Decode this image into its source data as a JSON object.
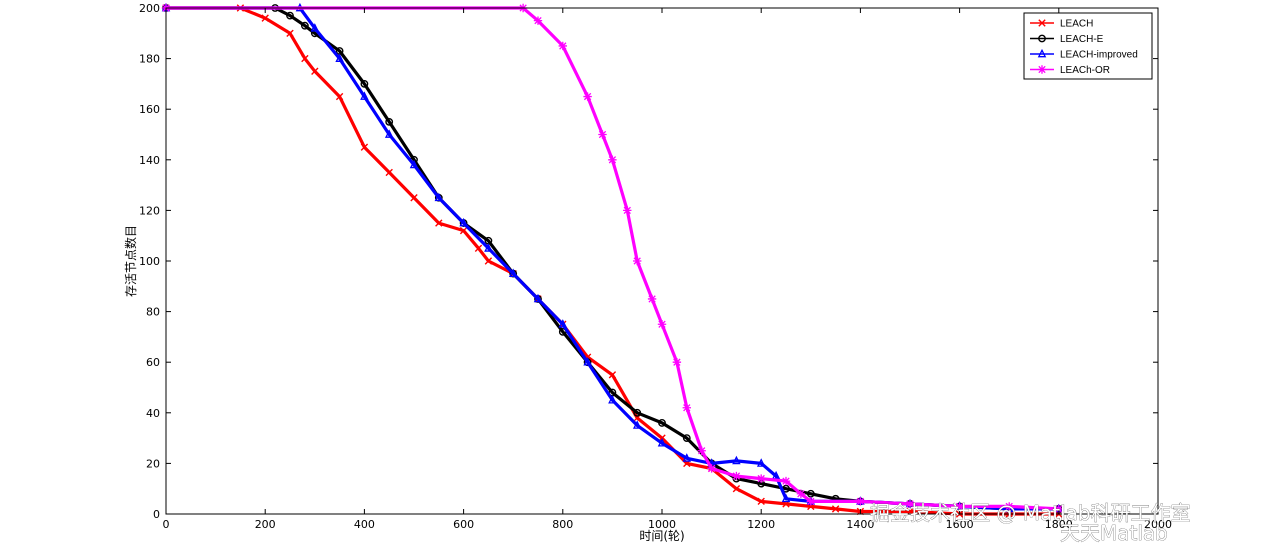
{
  "watermark": {
    "line1": "掘金技术社区 @ Matlab科研工作室",
    "line2": "天天Matlab"
  },
  "chart_data": {
    "type": "line",
    "title": "",
    "xlabel": "时间(轮)",
    "ylabel": "存活节点数目",
    "xlim": [
      0,
      2000
    ],
    "ylim": [
      0,
      200
    ],
    "xticks": [
      0,
      200,
      400,
      600,
      800,
      1000,
      1200,
      1400,
      1600,
      1800,
      2000
    ],
    "xtick_labels": [
      "0",
      "200",
      "400",
      "600",
      "800",
      "1000",
      "1200",
      "1400",
      "1600",
      "1800",
      "2000"
    ],
    "yticks": [
      0,
      20,
      40,
      60,
      80,
      100,
      120,
      140,
      160,
      180,
      200
    ],
    "ytick_labels": [
      "0",
      "20",
      "40",
      "60",
      "80",
      "100",
      "120",
      "140",
      "160",
      "180",
      "200"
    ],
    "grid": false,
    "legend_position": "top-right",
    "series": [
      {
        "name": "LEACH",
        "color": "#ff0000",
        "marker": "x",
        "x": [
          0,
          150,
          200,
          250,
          280,
          300,
          350,
          400,
          450,
          500,
          550,
          600,
          630,
          650,
          700,
          750,
          800,
          850,
          900,
          950,
          1000,
          1050,
          1100,
          1150,
          1200,
          1250,
          1300,
          1350,
          1400,
          1500,
          1600,
          1700,
          1800
        ],
        "y": [
          200,
          200,
          196,
          190,
          180,
          175,
          165,
          145,
          135,
          125,
          115,
          112,
          105,
          100,
          95,
          85,
          75,
          62,
          55,
          38,
          30,
          20,
          18,
          10,
          5,
          4,
          3,
          2,
          1,
          1,
          0,
          0,
          0
        ]
      },
      {
        "name": "LEACH-E",
        "color": "#000000",
        "marker": "o",
        "x": [
          0,
          220,
          250,
          280,
          300,
          350,
          400,
          450,
          500,
          550,
          600,
          650,
          700,
          750,
          800,
          850,
          900,
          950,
          1000,
          1050,
          1100,
          1150,
          1200,
          1250,
          1300,
          1350,
          1400,
          1500,
          1600,
          1700,
          1800
        ],
        "y": [
          200,
          200,
          197,
          193,
          190,
          183,
          170,
          155,
          140,
          125,
          115,
          108,
          95,
          85,
          72,
          60,
          48,
          40,
          36,
          30,
          20,
          14,
          12,
          10,
          8,
          6,
          5,
          4,
          3,
          2,
          2
        ]
      },
      {
        "name": "LEACH-improved",
        "color": "#0000ff",
        "marker": "triangle",
        "x": [
          0,
          270,
          300,
          350,
          400,
          450,
          500,
          550,
          600,
          650,
          700,
          750,
          800,
          850,
          900,
          950,
          1000,
          1050,
          1100,
          1150,
          1200,
          1230,
          1250,
          1300,
          1400,
          1500,
          1600,
          1700,
          1800
        ],
        "y": [
          200,
          200,
          192,
          180,
          165,
          150,
          138,
          125,
          115,
          105,
          95,
          85,
          75,
          60,
          45,
          35,
          28,
          22,
          20,
          21,
          20,
          15,
          6,
          5,
          5,
          4,
          3,
          2,
          2
        ]
      },
      {
        "name": "LEACh-OR",
        "color": "#ff00ff",
        "marker": "star",
        "x": [
          0,
          720,
          750,
          800,
          850,
          880,
          900,
          930,
          950,
          980,
          1000,
          1030,
          1050,
          1080,
          1100,
          1150,
          1200,
          1250,
          1280,
          1300,
          1400,
          1500,
          1600,
          1700,
          1800
        ],
        "y": [
          200,
          200,
          195,
          185,
          165,
          150,
          140,
          120,
          100,
          85,
          75,
          60,
          42,
          25,
          18,
          15,
          14,
          13,
          8,
          5,
          5,
          4,
          3,
          3,
          2
        ]
      }
    ]
  }
}
